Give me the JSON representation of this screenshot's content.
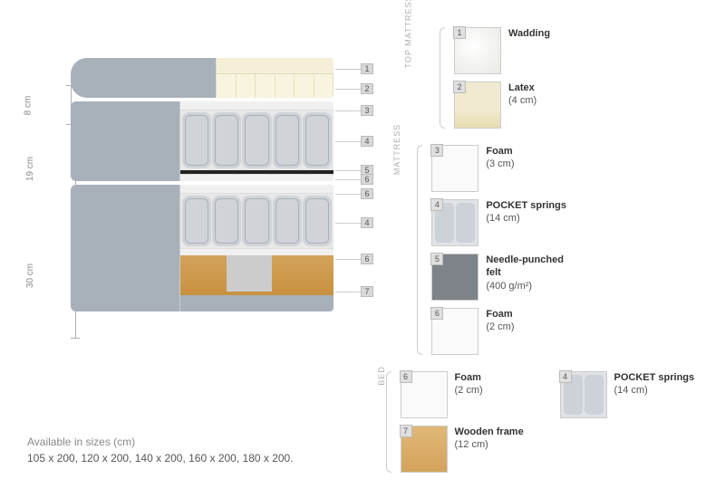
{
  "dimensions": {
    "top": "8 cm",
    "mattress": "19 cm",
    "bed": "30 cm"
  },
  "diagram_tags": {
    "top": [
      "1",
      "2"
    ],
    "mattress": [
      "3",
      "4",
      "5",
      "6"
    ],
    "bed": [
      "6",
      "4",
      "6",
      "7"
    ]
  },
  "sections": [
    {
      "title": "TOP MATTRESS",
      "items": [
        {
          "num": "1",
          "thumb": "wadding",
          "name": "Wadding",
          "sub": ""
        },
        {
          "num": "2",
          "thumb": "latex",
          "name": "Latex",
          "sub": "(4 cm)"
        }
      ]
    },
    {
      "title": "MATTRESS",
      "items": [
        {
          "num": "3",
          "thumb": "foam",
          "name": "Foam",
          "sub": "(3 cm)"
        },
        {
          "num": "4",
          "thumb": "springs-t",
          "name_html": "<b>POCKET springs</b>",
          "sub": "(14 cm)"
        },
        {
          "num": "5",
          "thumb": "felt-t",
          "name_html": "<b>Needle-punched felt</b>",
          "sub": "(400 g/m²)"
        },
        {
          "num": "6",
          "thumb": "foam",
          "name": "Foam",
          "sub": "(2 cm)"
        }
      ]
    },
    {
      "title": "BED",
      "items": [
        {
          "num": "6",
          "thumb": "foam",
          "name": "Foam",
          "sub": "(2 cm)"
        },
        {
          "num": "4",
          "thumb": "springs-t",
          "name_html": "<b>POCKET springs</b>",
          "sub": "(14 cm)"
        },
        {
          "num": "7",
          "thumb": "wood-t",
          "name": "Wooden frame",
          "sub": "(12 cm)"
        }
      ]
    }
  ],
  "footer": {
    "label": "Available in sizes (cm)",
    "sizes": "105 x 200, 120 x 200, 140 x 200, 160 x 200, 180 x 200."
  },
  "colors": {
    "cover": "#a8b0ba",
    "wood": "#d4a35c",
    "felt": "#222222",
    "tag_bg": "#d8d8d8",
    "text_muted": "#888888"
  }
}
